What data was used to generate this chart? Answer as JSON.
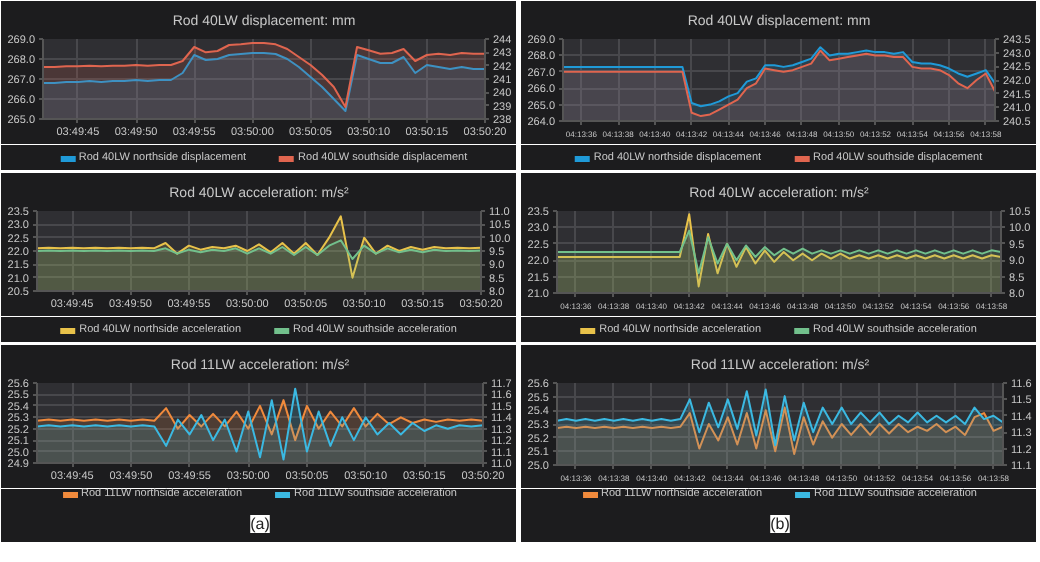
{
  "chart_data": [
    {
      "type": "area",
      "title": "Rod 40LW displacement: mm",
      "grid": true,
      "legend": "bottom",
      "x": [
        3.828333,
        3.828611,
        3.828889,
        3.829167,
        3.829444,
        3.829722,
        3.83,
        3.830278,
        3.830556,
        3.830833,
        3.831111,
        3.831389,
        3.831667,
        3.831944,
        3.832222,
        3.8325,
        3.832778,
        3.833056,
        3.833333,
        3.833611,
        3.833889,
        3.834167,
        3.834444,
        3.834722,
        3.835,
        3.835278,
        3.835556,
        3.835833,
        3.836111,
        3.836389,
        3.836667,
        3.836944,
        3.837222,
        3.8375,
        3.837778,
        3.838056,
        3.838333,
        3.838611,
        3.838889
      ],
      "xlim": [
        3.828333,
        3.838889
      ],
      "xticks": [
        {
          "value": 3.829167,
          "label": "03:49:45"
        },
        {
          "value": 3.830556,
          "label": "03:49:50"
        },
        {
          "value": 3.831944,
          "label": "03:49:55"
        },
        {
          "value": 3.833333,
          "label": "03:50:00"
        },
        {
          "value": 3.834722,
          "label": "03:50:05"
        },
        {
          "value": 3.836111,
          "label": "03:50:10"
        },
        {
          "value": 3.8375,
          "label": "03:50:15"
        },
        {
          "value": 3.838889,
          "label": "03:50:20"
        }
      ],
      "ylim": [
        265,
        269
      ],
      "yticks": [
        {
          "value": 265,
          "label": "265.0"
        },
        {
          "value": 266,
          "label": "266.0"
        },
        {
          "value": 267,
          "label": "267.0"
        },
        {
          "value": 268,
          "label": "268.0"
        },
        {
          "value": 269,
          "label": "269.0"
        }
      ],
      "y2lim": [
        238,
        244
      ],
      "y2ticks": [
        238,
        239,
        240,
        241,
        242,
        243,
        244
      ],
      "series": [
        {
          "name": "Rod 40LW northside displacement",
          "color": "#1f9ad8",
          "values": [
            266.8,
            266.8,
            266.85,
            266.85,
            266.9,
            266.85,
            266.9,
            266.9,
            266.95,
            266.9,
            266.95,
            266.95,
            267.3,
            268.2,
            267.95,
            268.0,
            268.2,
            268.25,
            268.3,
            268.3,
            268.25,
            268.0,
            267.6,
            267.1,
            266.6,
            266.0,
            265.4,
            268.2,
            268.0,
            267.8,
            267.8,
            268.1,
            267.3,
            267.7,
            267.6,
            267.5,
            267.6,
            267.5,
            267.5
          ]
        },
        {
          "name": "Rod 40LW southside displacement",
          "color": "#e0654f",
          "axis": "y2",
          "values": [
            241.9,
            241.9,
            241.95,
            241.95,
            242.0,
            241.95,
            242.0,
            242.0,
            242.05,
            242.0,
            242.05,
            242.05,
            242.35,
            243.4,
            243.0,
            243.1,
            243.55,
            243.6,
            243.7,
            243.7,
            243.6,
            243.25,
            242.65,
            242.05,
            241.3,
            240.4,
            238.9,
            243.4,
            243.15,
            242.9,
            242.95,
            243.25,
            242.35,
            242.8,
            242.9,
            242.8,
            242.95,
            242.9,
            242.9
          ]
        }
      ]
    },
    {
      "type": "area",
      "title": "Rod 40LW displacement: mm",
      "grid": true,
      "legend": "bottom",
      "x": [
        4.226389,
        4.226528,
        4.226667,
        4.226806,
        4.226944,
        4.227083,
        4.227222,
        4.227361,
        4.2275,
        4.227639,
        4.227778,
        4.227917,
        4.228056,
        4.228194,
        4.228333,
        4.228472,
        4.228611,
        4.22875,
        4.228889,
        4.229028,
        4.229167,
        4.229306,
        4.229444,
        4.229583,
        4.229722,
        4.229861,
        4.23,
        4.230139,
        4.230278,
        4.230417,
        4.230556,
        4.230694,
        4.230833,
        4.230972,
        4.231111,
        4.23125,
        4.231389,
        4.231528,
        4.231667,
        4.231806,
        4.231944,
        4.232083,
        4.232222,
        4.232361,
        4.2325,
        4.232639,
        4.232778,
        4.232917
      ],
      "xlim": [
        4.226389,
        4.232917
      ],
      "xticks": [
        {
          "value": 4.226667,
          "label": "04:13:36"
        },
        {
          "value": 4.227222,
          "label": "04:13:38"
        },
        {
          "value": 4.227778,
          "label": "04:13:40"
        },
        {
          "value": 4.228333,
          "label": "04:13:42"
        },
        {
          "value": 4.228889,
          "label": "04:13:44"
        },
        {
          "value": 4.229444,
          "label": "04:13:46"
        },
        {
          "value": 4.23,
          "label": "04:13:48"
        },
        {
          "value": 4.230556,
          "label": "04:13:50"
        },
        {
          "value": 4.231111,
          "label": "04:13:52"
        },
        {
          "value": 4.231667,
          "label": "04:13:54"
        },
        {
          "value": 4.232222,
          "label": "04:13:56"
        },
        {
          "value": 4.232778,
          "label": "04:13:58"
        }
      ],
      "ylim": [
        264,
        269
      ],
      "yticks": [
        {
          "value": 264,
          "label": "264.0"
        },
        {
          "value": 265,
          "label": "265.0"
        },
        {
          "value": 266,
          "label": "266.0"
        },
        {
          "value": 267,
          "label": "267.0"
        },
        {
          "value": 268,
          "label": "268.0"
        },
        {
          "value": 269,
          "label": "269.0"
        }
      ],
      "y2lim": [
        240.5,
        243.5
      ],
      "y2ticks": [
        240.5,
        {
          "value": 241,
          "label": "241.0"
        },
        241.5,
        {
          "value": 242,
          "label": "242.0"
        },
        242.5,
        {
          "value": 243,
          "label": "243.0"
        },
        243.5
      ],
      "series": [
        {
          "name": "Rod 40LW northside displacement",
          "color": "#1f9ad8",
          "values": [
            267.3,
            267.3,
            267.3,
            267.3,
            267.3,
            267.3,
            267.3,
            267.3,
            267.3,
            267.3,
            267.3,
            267.3,
            267.3,
            267.3,
            265.1,
            264.9,
            265.0,
            265.2,
            265.5,
            265.7,
            266.4,
            266.6,
            267.4,
            267.4,
            267.3,
            267.4,
            267.6,
            267.8,
            268.5,
            268.0,
            268.1,
            268.1,
            268.2,
            268.3,
            268.2,
            268.2,
            268.1,
            268.2,
            267.6,
            267.5,
            267.5,
            267.4,
            267.2,
            266.9,
            266.7,
            266.9,
            267.1,
            266.3
          ]
        },
        {
          "name": "Rod 40LW southside displacement",
          "color": "#e0654f",
          "axis": "y2",
          "values": [
            242.3,
            242.3,
            242.3,
            242.3,
            242.3,
            242.3,
            242.3,
            242.3,
            242.3,
            242.3,
            242.3,
            242.3,
            242.3,
            242.3,
            240.8,
            240.68,
            240.74,
            240.92,
            241.1,
            241.28,
            241.7,
            241.88,
            242.42,
            242.36,
            242.3,
            242.36,
            242.48,
            242.6,
            243.08,
            242.72,
            242.78,
            242.84,
            242.9,
            242.96,
            242.9,
            242.9,
            242.84,
            242.84,
            242.48,
            242.42,
            242.42,
            242.36,
            242.18,
            241.88,
            241.7,
            242.0,
            242.24,
            241.58
          ]
        }
      ]
    },
    {
      "type": "area",
      "title": "Rod 40LW acceleration: m/s²",
      "grid": true,
      "legend": "bottom",
      "x": [
        3.828333,
        3.828611,
        3.828889,
        3.829167,
        3.829444,
        3.829722,
        3.83,
        3.830278,
        3.830556,
        3.830833,
        3.831111,
        3.831389,
        3.831667,
        3.831944,
        3.832222,
        3.8325,
        3.832778,
        3.833056,
        3.833333,
        3.833611,
        3.833889,
        3.834167,
        3.834444,
        3.834722,
        3.835,
        3.835278,
        3.835556,
        3.835833,
        3.836111,
        3.836389,
        3.836667,
        3.836944,
        3.837222,
        3.8375,
        3.837778,
        3.838056,
        3.838333,
        3.838611,
        3.838889
      ],
      "xlim": [
        3.828333,
        3.838889
      ],
      "xticks": [
        {
          "value": 3.829167,
          "label": "03:49:45"
        },
        {
          "value": 3.830556,
          "label": "03:49:50"
        },
        {
          "value": 3.831944,
          "label": "03:49:55"
        },
        {
          "value": 3.833333,
          "label": "03:50:00"
        },
        {
          "value": 3.834722,
          "label": "03:50:05"
        },
        {
          "value": 3.836111,
          "label": "03:50:10"
        },
        {
          "value": 3.8375,
          "label": "03:50:15"
        },
        {
          "value": 3.838889,
          "label": "03:50:20"
        }
      ],
      "ylim": [
        20.5,
        23.5
      ],
      "yticks": [
        20.5,
        {
          "value": 21,
          "label": "21.0"
        },
        21.5,
        {
          "value": 22,
          "label": "22.0"
        },
        22.5,
        {
          "value": 23,
          "label": "23.0"
        },
        23.5
      ],
      "y2lim": [
        8,
        11
      ],
      "y2ticks": [
        {
          "value": 8,
          "label": "8.0"
        },
        8.5,
        {
          "value": 9,
          "label": "9.0"
        },
        9.5,
        {
          "value": 10,
          "label": "10.0"
        },
        10.5,
        {
          "value": 11,
          "label": "11.0"
        }
      ],
      "series": [
        {
          "name": "Rod 40LW northside acceleration",
          "color": "#e8c24a",
          "values": [
            22.1,
            22.12,
            22.1,
            22.12,
            22.1,
            22.12,
            22.1,
            22.12,
            22.1,
            22.12,
            22.1,
            22.3,
            21.9,
            22.2,
            22.05,
            22.15,
            22.1,
            22.2,
            22.0,
            22.25,
            21.95,
            22.3,
            21.9,
            22.3,
            21.85,
            22.5,
            23.3,
            21.0,
            22.5,
            21.9,
            22.2,
            22.0,
            22.15,
            22.05,
            22.15,
            22.1,
            22.12,
            22.1,
            22.12
          ]
        },
        {
          "name": "Rod 40LW southside acceleration",
          "color": "#72c08c",
          "axis": "y2",
          "values": [
            9.5,
            9.52,
            9.5,
            9.52,
            9.5,
            9.52,
            9.5,
            9.52,
            9.5,
            9.52,
            9.5,
            9.6,
            9.4,
            9.55,
            9.45,
            9.55,
            9.5,
            9.6,
            9.4,
            9.6,
            9.4,
            9.65,
            9.35,
            9.65,
            9.35,
            9.7,
            9.9,
            9.2,
            9.7,
            9.4,
            9.6,
            9.45,
            9.55,
            9.45,
            9.55,
            9.5,
            9.52,
            9.5,
            9.52
          ]
        }
      ]
    },
    {
      "type": "area",
      "title": "Rod 40LW acceleration: m/s²",
      "grid": true,
      "legend": "bottom",
      "x": [
        4.226389,
        4.226528,
        4.226667,
        4.226806,
        4.226944,
        4.227083,
        4.227222,
        4.227361,
        4.2275,
        4.227639,
        4.227778,
        4.227917,
        4.228056,
        4.228194,
        4.228333,
        4.228472,
        4.228611,
        4.22875,
        4.228889,
        4.229028,
        4.229167,
        4.229306,
        4.229444,
        4.229583,
        4.229722,
        4.229861,
        4.23,
        4.230139,
        4.230278,
        4.230417,
        4.230556,
        4.230694,
        4.230833,
        4.230972,
        4.231111,
        4.23125,
        4.231389,
        4.231528,
        4.231667,
        4.231806,
        4.231944,
        4.232083,
        4.232222,
        4.232361,
        4.2325,
        4.232639,
        4.232778,
        4.232917
      ],
      "xlim": [
        4.226389,
        4.232917
      ],
      "xticks": [
        {
          "value": 4.226667,
          "label": "04:13:36"
        },
        {
          "value": 4.227222,
          "label": "04:13:38"
        },
        {
          "value": 4.227778,
          "label": "04:13:40"
        },
        {
          "value": 4.228333,
          "label": "04:13:42"
        },
        {
          "value": 4.228889,
          "label": "04:13:44"
        },
        {
          "value": 4.229444,
          "label": "04:13:46"
        },
        {
          "value": 4.23,
          "label": "04:13:48"
        },
        {
          "value": 4.230556,
          "label": "04:13:50"
        },
        {
          "value": 4.231111,
          "label": "04:13:52"
        },
        {
          "value": 4.231667,
          "label": "04:13:54"
        },
        {
          "value": 4.232222,
          "label": "04:13:56"
        },
        {
          "value": 4.232778,
          "label": "04:13:58"
        }
      ],
      "ylim": [
        21,
        23.5
      ],
      "yticks": [
        {
          "value": 21,
          "label": "21.0"
        },
        21.5,
        {
          "value": 22,
          "label": "22.0"
        },
        22.5,
        {
          "value": 23,
          "label": "23.0"
        },
        23.5
      ],
      "y2lim": [
        8,
        10.5
      ],
      "y2ticks": [
        {
          "value": 8,
          "label": "8.0"
        },
        8.5,
        {
          "value": 9,
          "label": "9.0"
        },
        9.5,
        {
          "value": 10,
          "label": "10.0"
        },
        10.5
      ],
      "series": [
        {
          "name": "Rod 40LW northside acceleration",
          "color": "#e8c24a",
          "values": [
            22.1,
            22.1,
            22.1,
            22.1,
            22.1,
            22.1,
            22.1,
            22.1,
            22.1,
            22.1,
            22.1,
            22.1,
            22.1,
            22.1,
            23.4,
            21.2,
            22.8,
            21.6,
            22.5,
            21.8,
            22.4,
            21.9,
            22.3,
            21.95,
            22.25,
            22.0,
            22.2,
            22.0,
            22.2,
            22.05,
            22.2,
            22.05,
            22.15,
            22.05,
            22.15,
            22.05,
            22.15,
            22.05,
            22.15,
            22.05,
            22.15,
            22.05,
            22.15,
            22.05,
            22.15,
            22.05,
            22.15,
            22.1
          ]
        },
        {
          "name": "Rod 40LW southside acceleration",
          "color": "#72c08c",
          "axis": "y2",
          "values": [
            9.25,
            9.25,
            9.25,
            9.25,
            9.25,
            9.25,
            9.25,
            9.25,
            9.25,
            9.25,
            9.25,
            9.25,
            9.25,
            9.25,
            9.9,
            8.6,
            9.7,
            8.9,
            9.5,
            9.0,
            9.45,
            9.1,
            9.4,
            9.15,
            9.35,
            9.2,
            9.35,
            9.2,
            9.3,
            9.2,
            9.3,
            9.2,
            9.3,
            9.2,
            9.3,
            9.2,
            9.3,
            9.2,
            9.3,
            9.2,
            9.3,
            9.2,
            9.3,
            9.2,
            9.3,
            9.2,
            9.3,
            9.25
          ]
        }
      ]
    },
    {
      "type": "area",
      "title": "Rod 11LW acceleration: m/s²",
      "grid": true,
      "legend": "bottom",
      "annotations": [
        "(a)"
      ],
      "x": [
        3.828333,
        3.828611,
        3.828889,
        3.829167,
        3.829444,
        3.829722,
        3.83,
        3.830278,
        3.830556,
        3.830833,
        3.831111,
        3.831389,
        3.831667,
        3.831944,
        3.832222,
        3.8325,
        3.832778,
        3.833056,
        3.833333,
        3.833611,
        3.833889,
        3.834167,
        3.834444,
        3.834722,
        3.835,
        3.835278,
        3.835556,
        3.835833,
        3.836111,
        3.836389,
        3.836667,
        3.836944,
        3.837222,
        3.8375,
        3.837778,
        3.838056,
        3.838333,
        3.838611,
        3.838889
      ],
      "xlim": [
        3.828333,
        3.838889
      ],
      "xticks": [
        {
          "value": 3.829167,
          "label": "03:49:45"
        },
        {
          "value": 3.830556,
          "label": "03:49:50"
        },
        {
          "value": 3.831944,
          "label": "03:49:55"
        },
        {
          "value": 3.833333,
          "label": "03:50:00"
        },
        {
          "value": 3.834722,
          "label": "03:50:05"
        },
        {
          "value": 3.836111,
          "label": "03:50:10"
        },
        {
          "value": 3.8375,
          "label": "03:50:15"
        },
        {
          "value": 3.838889,
          "label": "03:50:20"
        }
      ],
      "ylim": [
        24.9,
        25.6
      ],
      "yticks": [
        24.9,
        {
          "value": 25,
          "label": "25.0"
        },
        25.1,
        25.2,
        25.3,
        25.4,
        25.5,
        25.6
      ],
      "y2lim": [
        11,
        11.7
      ],
      "y2ticks": [
        {
          "value": 11,
          "label": "11.0"
        },
        11.1,
        11.2,
        11.3,
        11.4,
        11.5,
        11.6,
        11.7
      ],
      "series": [
        {
          "name": "Rod 11LW northside acceleration",
          "color": "#f08a3c",
          "values": [
            25.27,
            25.28,
            25.27,
            25.28,
            25.27,
            25.28,
            25.27,
            25.28,
            25.27,
            25.28,
            25.27,
            25.38,
            25.2,
            25.32,
            25.22,
            25.33,
            25.22,
            25.35,
            25.2,
            25.4,
            25.15,
            25.45,
            25.1,
            25.4,
            25.2,
            25.35,
            25.22,
            25.38,
            25.22,
            25.33,
            25.24,
            25.3,
            25.25,
            25.28,
            25.26,
            25.28,
            25.27,
            25.28,
            25.27
          ]
        },
        {
          "name": "Rod 11LW southside acceleration",
          "color": "#3bb9e2",
          "axis": "y2",
          "values": [
            11.32,
            11.33,
            11.32,
            11.33,
            11.32,
            11.33,
            11.32,
            11.33,
            11.32,
            11.33,
            11.32,
            11.15,
            11.38,
            11.25,
            11.42,
            11.2,
            11.38,
            11.1,
            11.45,
            11.05,
            11.55,
            11.03,
            11.65,
            11.1,
            11.45,
            11.15,
            11.4,
            11.2,
            11.4,
            11.25,
            11.35,
            11.25,
            11.35,
            11.28,
            11.33,
            11.3,
            11.33,
            11.32,
            11.33
          ]
        }
      ]
    },
    {
      "type": "area",
      "title": "Rod 11LW acceleration: m/s²",
      "grid": true,
      "legend": "bottom",
      "annotations": [
        "(b)"
      ],
      "x": [
        4.226389,
        4.226528,
        4.226667,
        4.226806,
        4.226944,
        4.227083,
        4.227222,
        4.227361,
        4.2275,
        4.227639,
        4.227778,
        4.227917,
        4.228056,
        4.228194,
        4.228333,
        4.228472,
        4.228611,
        4.22875,
        4.228889,
        4.229028,
        4.229167,
        4.229306,
        4.229444,
        4.229583,
        4.229722,
        4.229861,
        4.23,
        4.230139,
        4.230278,
        4.230417,
        4.230556,
        4.230694,
        4.230833,
        4.230972,
        4.231111,
        4.23125,
        4.231389,
        4.231528,
        4.231667,
        4.231806,
        4.231944,
        4.232083,
        4.232222,
        4.232361,
        4.2325,
        4.232639,
        4.232778,
        4.232917
      ],
      "xlim": [
        4.226389,
        4.232917
      ],
      "xticks": [
        {
          "value": 4.226667,
          "label": "04:13:36"
        },
        {
          "value": 4.227222,
          "label": "04:13:38"
        },
        {
          "value": 4.227778,
          "label": "04:13:40"
        },
        {
          "value": 4.228333,
          "label": "04:13:42"
        },
        {
          "value": 4.228889,
          "label": "04:13:44"
        },
        {
          "value": 4.229444,
          "label": "04:13:46"
        },
        {
          "value": 4.23,
          "label": "04:13:48"
        },
        {
          "value": 4.230556,
          "label": "04:13:50"
        },
        {
          "value": 4.231111,
          "label": "04:13:52"
        },
        {
          "value": 4.231667,
          "label": "04:13:54"
        },
        {
          "value": 4.232222,
          "label": "04:13:56"
        },
        {
          "value": 4.232778,
          "label": "04:13:58"
        }
      ],
      "ylim": [
        25,
        25.6
      ],
      "yticks": [
        {
          "value": 25,
          "label": "25.0"
        },
        25.1,
        25.2,
        25.3,
        25.4,
        25.5,
        25.6
      ],
      "y2lim": [
        11.1,
        11.6
      ],
      "y2ticks": [
        11.1,
        11.2,
        11.3,
        11.4,
        11.5,
        11.6
      ],
      "series": [
        {
          "name": "Rod 11LW northside acceleration",
          "color": "#f08a3c",
          "values": [
            25.27,
            25.28,
            25.27,
            25.28,
            25.27,
            25.28,
            25.27,
            25.28,
            25.27,
            25.28,
            25.27,
            25.28,
            25.27,
            25.28,
            25.38,
            25.12,
            25.3,
            25.18,
            25.35,
            25.15,
            25.38,
            25.12,
            25.4,
            25.1,
            25.42,
            25.08,
            25.35,
            25.15,
            25.32,
            25.2,
            25.3,
            25.22,
            25.3,
            25.22,
            25.3,
            25.23,
            25.3,
            25.24,
            25.28,
            25.25,
            25.3,
            25.24,
            25.28,
            25.22,
            25.35,
            25.38,
            25.25,
            25.28
          ]
        },
        {
          "name": "Rod 11LW southside acceleration",
          "color": "#3bb9e2",
          "axis": "y2",
          "values": [
            11.37,
            11.38,
            11.37,
            11.38,
            11.37,
            11.38,
            11.37,
            11.38,
            11.37,
            11.38,
            11.37,
            11.38,
            11.37,
            11.38,
            11.5,
            11.3,
            11.48,
            11.33,
            11.5,
            11.32,
            11.55,
            11.28,
            11.56,
            11.22,
            11.52,
            11.25,
            11.48,
            11.3,
            11.45,
            11.35,
            11.45,
            11.35,
            11.42,
            11.36,
            11.42,
            11.35,
            11.4,
            11.36,
            11.42,
            11.36,
            11.4,
            11.36,
            11.4,
            11.35,
            11.45,
            11.38,
            11.4,
            11.36
          ]
        }
      ]
    }
  ]
}
